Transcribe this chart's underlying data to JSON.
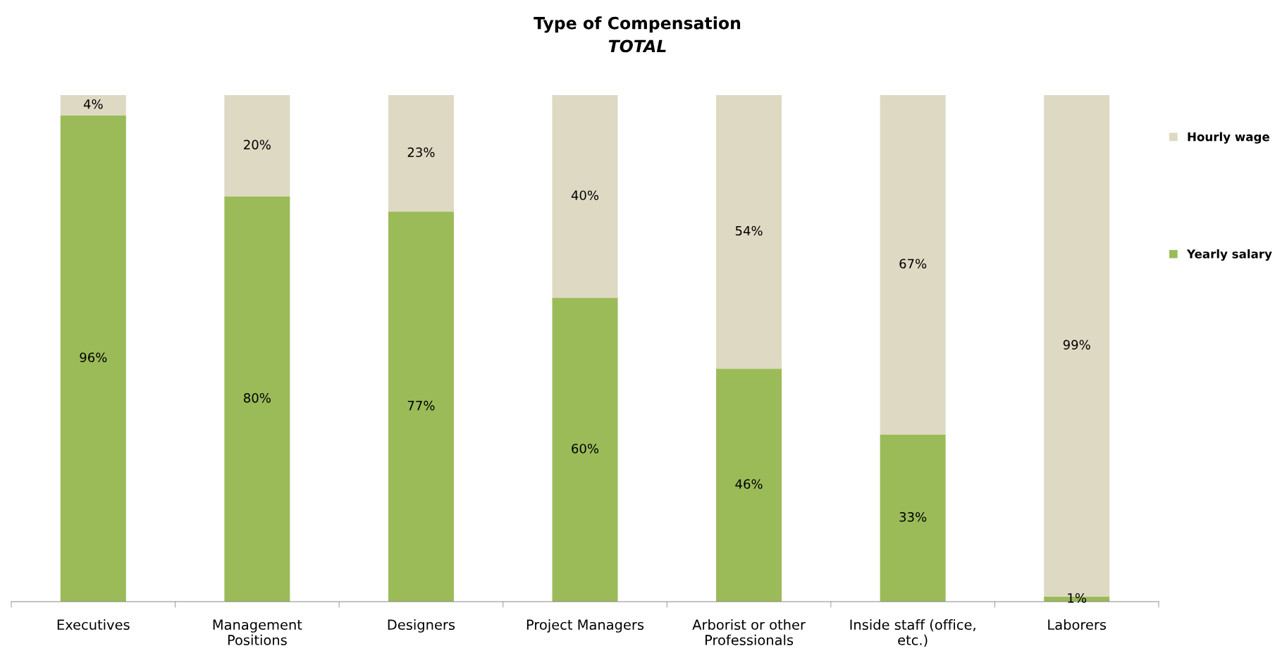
{
  "chart_data": {
    "type": "bar",
    "title": "Type of Compensation",
    "subtitle": "TOTAL",
    "categories": [
      "Executives",
      "Management\nPositions",
      "Designers",
      "Project Managers",
      "Arborist or other\nProfessionals",
      "Inside staff (office,\netc.)",
      "Laborers"
    ],
    "stacked": true,
    "legend": "right",
    "series": [
      {
        "name": "Yearly salary",
        "color": "#9bbb59",
        "values": [
          96,
          80,
          77,
          60,
          46,
          33,
          1
        ],
        "value_labels": [
          "96%",
          "80%",
          "77%",
          "60%",
          "46%",
          "33%",
          "1%"
        ]
      },
      {
        "name": "Hourly wage",
        "color": "#ddd9c3",
        "values": [
          4,
          20,
          23,
          40,
          54,
          67,
          99
        ],
        "value_labels": [
          "4%",
          "20%",
          "23%",
          "40%",
          "54%",
          "67%",
          "99%"
        ]
      }
    ]
  }
}
